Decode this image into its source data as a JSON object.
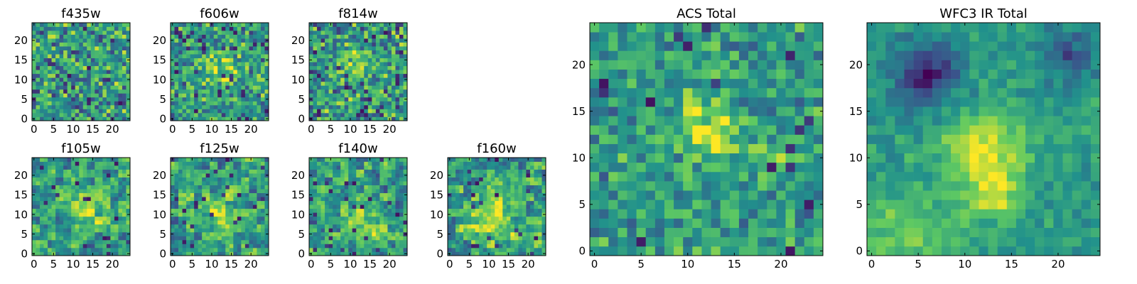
{
  "figure": {
    "background": "#ffffff",
    "colormap": "viridis",
    "colormap_stops": [
      "#440154",
      "#3b528b",
      "#21918c",
      "#5ec962",
      "#fde725"
    ]
  },
  "chart_data": [
    {
      "type": "heatmap",
      "title": "f435w",
      "grid_size": [
        25,
        25
      ],
      "x_ticks": [
        "0",
        "5",
        "10",
        "15",
        "20"
      ],
      "y_ticks": [
        "0",
        "5",
        "10",
        "15",
        "20"
      ],
      "xlim": [
        0,
        24
      ],
      "ylim": [
        0,
        24
      ],
      "colormap": "viridis",
      "seed": 11,
      "source": [],
      "noise": 0.55,
      "dark_rate": 0.05,
      "blocks": 1
    },
    {
      "type": "heatmap",
      "title": "f606w",
      "grid_size": [
        25,
        25
      ],
      "x_ticks": [
        "0",
        "5",
        "10",
        "15",
        "20"
      ],
      "y_ticks": [
        "0",
        "5",
        "10",
        "15",
        "20"
      ],
      "xlim": [
        0,
        24
      ],
      "ylim": [
        0,
        24
      ],
      "colormap": "viridis",
      "seed": 23,
      "source": [
        {
          "x": 12,
          "y": 13,
          "sigma": 3.5,
          "amp": 0.25
        }
      ],
      "noise": 0.5,
      "dark_rate": 0.04,
      "blocks": 1
    },
    {
      "type": "heatmap",
      "title": "f814w",
      "grid_size": [
        25,
        25
      ],
      "x_ticks": [
        "0",
        "5",
        "10",
        "15",
        "20"
      ],
      "y_ticks": [
        "0",
        "5",
        "10",
        "15",
        "20"
      ],
      "xlim": [
        0,
        24
      ],
      "ylim": [
        0,
        24
      ],
      "colormap": "viridis",
      "seed": 37,
      "source": [
        {
          "x": 11,
          "y": 13,
          "sigma": 3,
          "amp": 0.2
        }
      ],
      "noise": 0.55,
      "dark_rate": 0.05,
      "blocks": 1
    },
    {
      "type": "heatmap",
      "title": "f105w",
      "grid_size": [
        25,
        25
      ],
      "x_ticks": [
        "0",
        "5",
        "10",
        "15",
        "20"
      ],
      "y_ticks": [
        "0",
        "5",
        "10",
        "15",
        "20"
      ],
      "xlim": [
        0,
        24
      ],
      "ylim": [
        0,
        24
      ],
      "colormap": "viridis",
      "seed": 41,
      "source": [
        {
          "x": 13,
          "y": 11,
          "sigma": 3.5,
          "amp": 0.3
        }
      ],
      "noise": 0.45,
      "dark_rate": 0.03,
      "blocks": 2
    },
    {
      "type": "heatmap",
      "title": "f125w",
      "grid_size": [
        25,
        25
      ],
      "x_ticks": [
        "0",
        "5",
        "10",
        "15",
        "20"
      ],
      "y_ticks": [
        "0",
        "5",
        "10",
        "15",
        "20"
      ],
      "xlim": [
        0,
        24
      ],
      "ylim": [
        0,
        24
      ],
      "colormap": "viridis",
      "seed": 53,
      "source": [
        {
          "x": 12,
          "y": 10,
          "sigma": 4,
          "amp": 0.3
        }
      ],
      "noise": 0.45,
      "dark_rate": 0.03,
      "blocks": 2
    },
    {
      "type": "heatmap",
      "title": "f140w",
      "grid_size": [
        25,
        25
      ],
      "x_ticks": [
        "0",
        "5",
        "10",
        "15",
        "20"
      ],
      "y_ticks": [
        "0",
        "5",
        "10",
        "15",
        "20"
      ],
      "xlim": [
        0,
        24
      ],
      "ylim": [
        0,
        24
      ],
      "colormap": "viridis",
      "seed": 67,
      "source": [
        {
          "x": 14,
          "y": 7,
          "sigma": 3.5,
          "amp": 0.35
        }
      ],
      "noise": 0.45,
      "dark_rate": 0.03,
      "blocks": 2
    },
    {
      "type": "heatmap",
      "title": "f160w",
      "grid_size": [
        25,
        25
      ],
      "x_ticks": [
        "0",
        "5",
        "10",
        "15",
        "20"
      ],
      "y_ticks": [
        "0",
        "5",
        "10",
        "15",
        "20"
      ],
      "xlim": [
        0,
        24
      ],
      "ylim": [
        0,
        24
      ],
      "colormap": "viridis",
      "seed": 79,
      "source": [
        {
          "x": 11,
          "y": 9,
          "sigma": 4.5,
          "amp": 0.35
        }
      ],
      "noise": 0.45,
      "dark_rate": 0.04,
      "blocks": 2
    },
    {
      "type": "heatmap",
      "title": "ACS Total",
      "grid_size": [
        25,
        25
      ],
      "x_ticks": [
        "0",
        "5",
        "10",
        "15",
        "20"
      ],
      "y_ticks": [
        "0",
        "5",
        "10",
        "15",
        "20"
      ],
      "xlim": [
        0,
        24
      ],
      "ylim": [
        0,
        24
      ],
      "colormap": "viridis",
      "seed": 91,
      "source": [
        {
          "x": 12,
          "y": 13,
          "sigma": 2.5,
          "amp": 0.35
        },
        {
          "x": 19,
          "y": 10,
          "sigma": 1,
          "amp": 0.25
        }
      ],
      "noise": 0.4,
      "dark_rate": 0.03,
      "blocks": 1
    },
    {
      "type": "heatmap",
      "title": "WFC3 IR Total",
      "grid_size": [
        25,
        25
      ],
      "x_ticks": [
        "0",
        "5",
        "10",
        "15",
        "20"
      ],
      "y_ticks": [
        "0",
        "5",
        "10",
        "15",
        "20"
      ],
      "xlim": [
        0,
        24
      ],
      "ylim": [
        0,
        24
      ],
      "colormap": "viridis",
      "seed": 103,
      "source": [
        {
          "x": 12,
          "y": 11,
          "sigma": 3,
          "amp": 0.4
        },
        {
          "x": 13,
          "y": 6,
          "sigma": 2,
          "amp": 0.3
        },
        {
          "x": 3,
          "y": 1,
          "sigma": 4,
          "amp": 0.2
        }
      ],
      "noise": 0.2,
      "dark_rate": 0.0,
      "blocks": 1,
      "dark_region": [
        {
          "x": 6,
          "y": 19,
          "sigma": 2.5,
          "amp": 0.45
        },
        {
          "x": 21,
          "y": 21,
          "sigma": 2,
          "amp": 0.3
        }
      ]
    }
  ]
}
